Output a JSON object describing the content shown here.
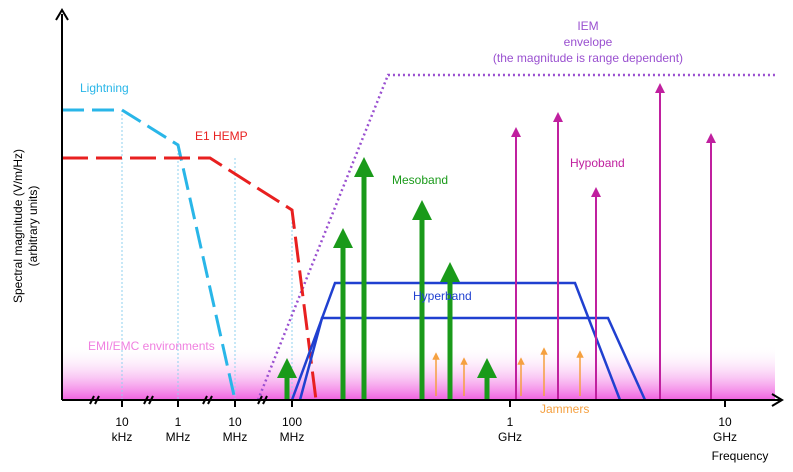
{
  "axes": {
    "y_label": "Spectral magnitude  (V/m/Hz)",
    "y_sublabel": "(arbitrary units)",
    "x_label": "Frequency",
    "ticks": [
      [
        "10",
        "kHz"
      ],
      [
        "1",
        "MHz"
      ],
      [
        "10",
        "MHz"
      ],
      [
        "100",
        "MHz"
      ],
      [
        "1",
        "GHz"
      ],
      [
        "10",
        "GHz"
      ]
    ]
  },
  "labels": {
    "lightning": "Lightning",
    "e1_hemp": "E1 HEMP",
    "mesoband": "Mesoband",
    "hypoband": "Hypoband",
    "hyperband": "Hyperband",
    "iem": [
      "IEM",
      "envelope",
      "(the magnitude is range dependent)"
    ],
    "emi": "EMI/EMC environments",
    "jammers": "Jammers"
  }
}
